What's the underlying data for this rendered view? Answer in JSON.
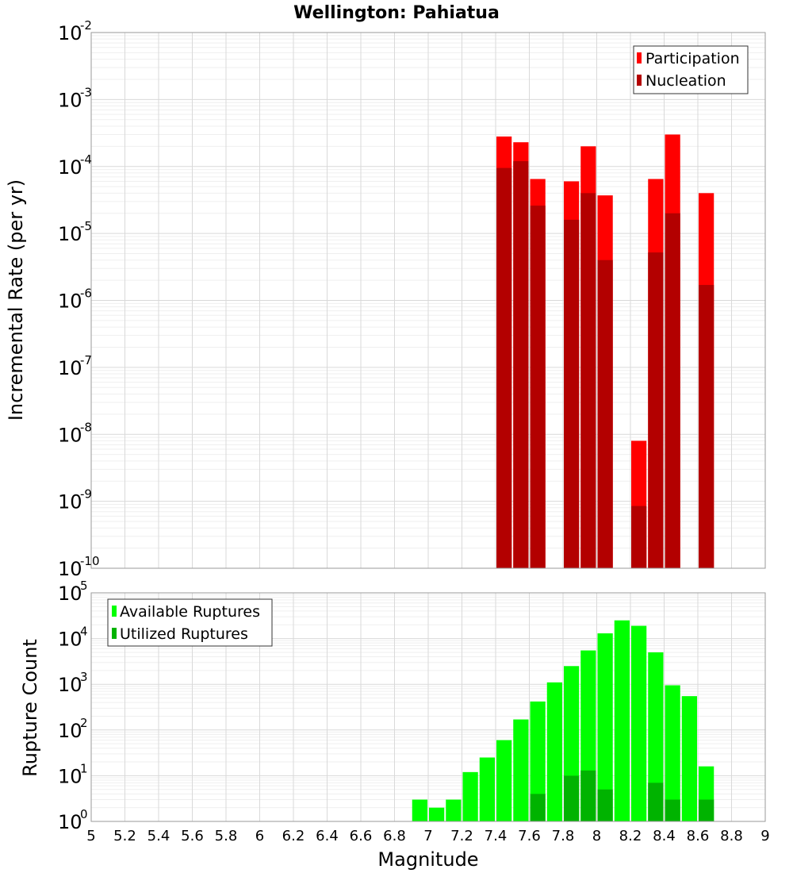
{
  "title": "Wellington: Pahiatua",
  "colors": {
    "participation": "#ff0000",
    "nucleation": "#b30000",
    "available": "#00ff00",
    "utilized": "#00b300"
  },
  "chart_data": [
    {
      "type": "bar",
      "scale": "log",
      "ylabel": "Incremental Rate (per yr)",
      "ylim_exp": [
        -10,
        -2
      ],
      "legend": {
        "placement": "top-right",
        "entries": [
          "Participation",
          "Nucleation"
        ]
      },
      "x": [
        7.45,
        7.55,
        7.65,
        7.85,
        7.95,
        8.05,
        8.25,
        8.35,
        8.45,
        8.65
      ],
      "series": [
        {
          "name": "Participation",
          "values": [
            0.00028,
            0.00023,
            6.5e-05,
            6e-05,
            0.0002,
            3.7e-05,
            8e-09,
            6.5e-05,
            0.0003,
            4e-05
          ]
        },
        {
          "name": "Nucleation",
          "values": [
            9.5e-05,
            0.00012,
            2.6e-05,
            1.6e-05,
            4e-05,
            4e-06,
            8.5e-10,
            5.2e-06,
            2e-05,
            1.7e-06
          ]
        }
      ]
    },
    {
      "type": "bar",
      "scale": "log",
      "xlabel": "Magnitude",
      "ylabel": "Rupture Count",
      "ylim_exp": [
        0,
        5
      ],
      "xlim": [
        5,
        9
      ],
      "legend": {
        "placement": "top-left",
        "entries": [
          "Available Ruptures",
          "Utilized Ruptures"
        ]
      },
      "x": [
        6.95,
        7.05,
        7.15,
        7.25,
        7.35,
        7.45,
        7.55,
        7.65,
        7.75,
        7.85,
        7.95,
        8.05,
        8.15,
        8.25,
        8.35,
        8.45,
        8.55,
        8.65
      ],
      "series": [
        {
          "name": "Available Ruptures",
          "values": [
            3,
            2,
            3,
            12,
            25,
            60,
            170,
            420,
            1100,
            2500,
            5500,
            13000,
            25000,
            19000,
            5000,
            950,
            550,
            16
          ]
        },
        {
          "name": "Utilized Ruptures",
          "values": [
            0,
            0,
            0,
            0,
            0,
            1,
            1,
            4,
            0,
            10,
            13,
            5,
            0,
            1,
            7,
            3,
            0,
            3
          ]
        }
      ]
    }
  ],
  "x_ticks": [
    "5",
    "5.2",
    "5.4",
    "5.6",
    "5.8",
    "6",
    "6.2",
    "6.4",
    "6.6",
    "6.8",
    "7",
    "7.2",
    "7.4",
    "7.6",
    "7.8",
    "8",
    "8.2",
    "8.4",
    "8.6",
    "8.8",
    "9"
  ],
  "tick_base": "10"
}
